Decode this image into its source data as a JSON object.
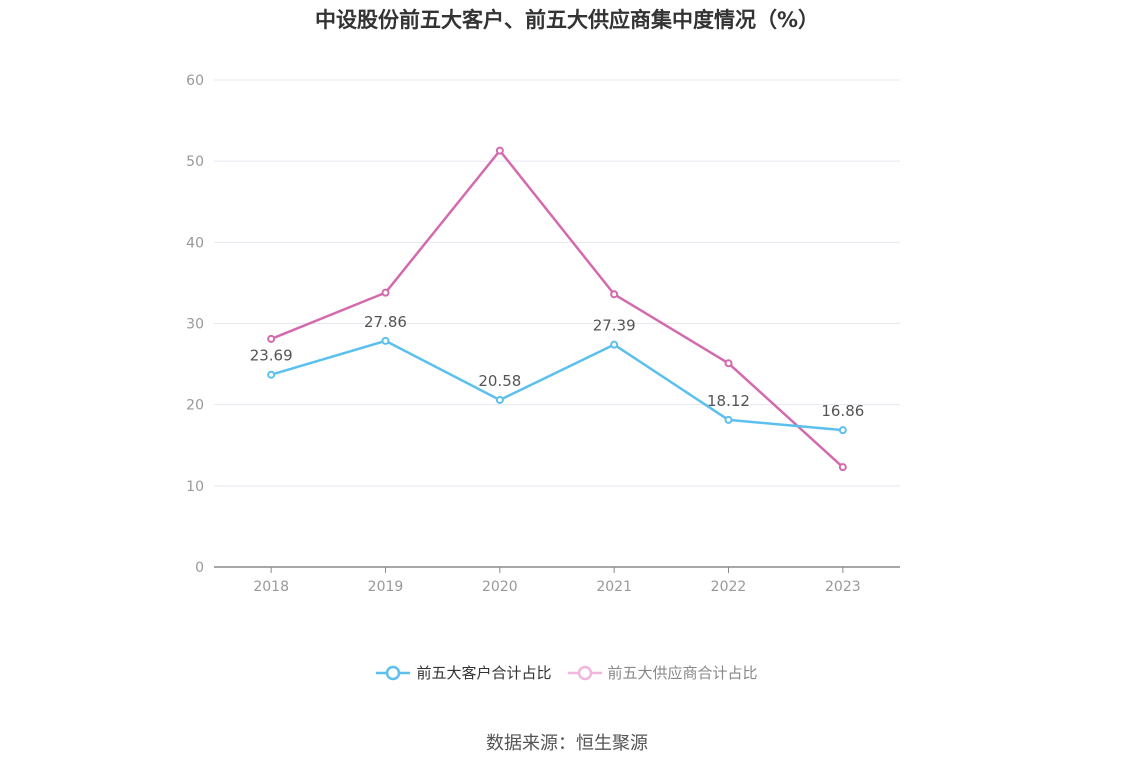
{
  "chart_data": {
    "type": "line",
    "title": "中设股份前五大客户、前五大供应商集中度情况（%）",
    "x": [
      "2018",
      "2019",
      "2020",
      "2021",
      "2022",
      "2023"
    ],
    "series": [
      {
        "name": "前五大客户合计占比",
        "color": "#5bc0ee",
        "values": [
          23.69,
          27.86,
          20.58,
          27.39,
          18.12,
          16.86
        ],
        "labels": true
      },
      {
        "name": "前五大供应商合计占比",
        "color": "#d46aae",
        "values": [
          28.1,
          33.8,
          51.3,
          33.6,
          25.1,
          12.3
        ],
        "labels": false
      }
    ],
    "ylim": [
      0,
      60
    ],
    "yticks": [
      0,
      10,
      20,
      30,
      40,
      50,
      60
    ],
    "grid": true,
    "legend": "bottom-center",
    "legend_dim_color": "#f0b6dc"
  },
  "source": "数据来源：恒生聚源"
}
